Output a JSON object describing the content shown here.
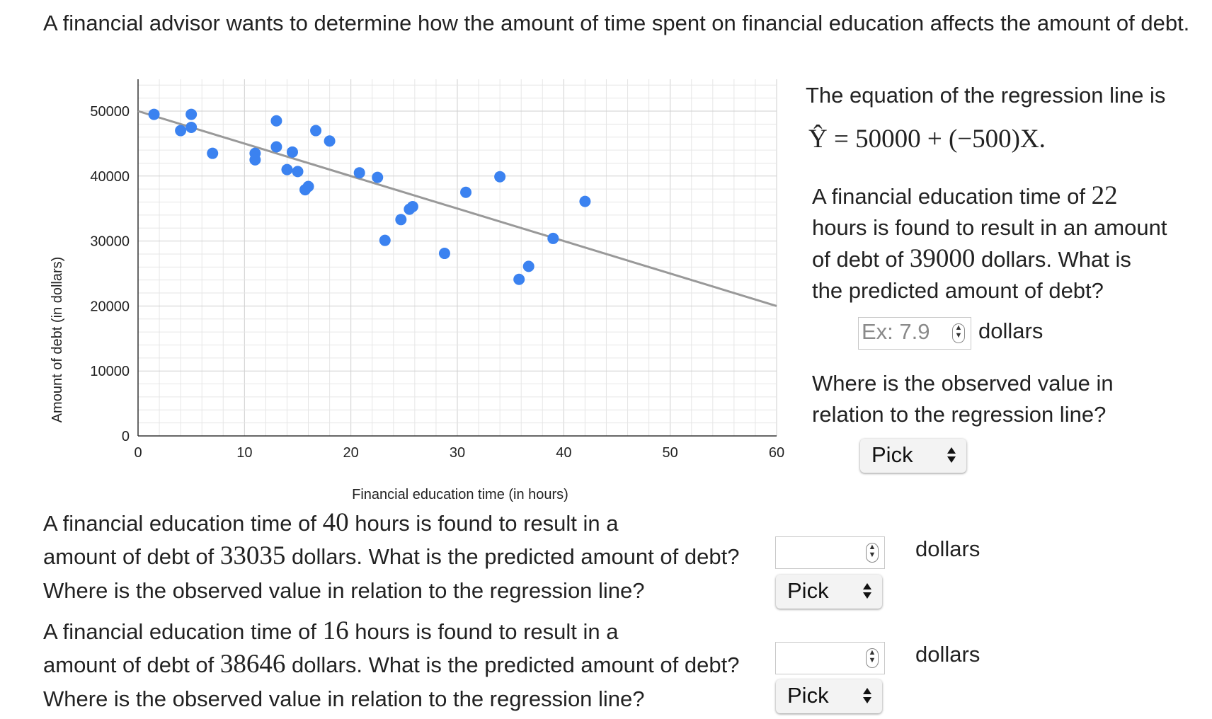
{
  "intro": "A financial advisor wants to determine how the amount of time spent on financial education affects the amount of debt.",
  "chart_data": {
    "type": "scatter",
    "xlabel": "Financial education time (in hours)",
    "ylabel": "Amount of debt (in dollars)",
    "xlim": [
      0,
      60
    ],
    "ylim": [
      0,
      50000
    ],
    "xticks": [
      0,
      10,
      20,
      30,
      40,
      50,
      60
    ],
    "yticks": [
      0,
      10000,
      20000,
      30000,
      40000,
      50000
    ],
    "grid": true,
    "point_color": "#3b82f0",
    "line_color": "#999999",
    "regression": {
      "intercept": 50000,
      "slope": -500
    },
    "points": [
      {
        "x": 1.5,
        "y": 49500
      },
      {
        "x": 4,
        "y": 47000
      },
      {
        "x": 5,
        "y": 49500
      },
      {
        "x": 5,
        "y": 47500
      },
      {
        "x": 7,
        "y": 43500
      },
      {
        "x": 11,
        "y": 43500
      },
      {
        "x": 11,
        "y": 42500
      },
      {
        "x": 13,
        "y": 48500
      },
      {
        "x": 13,
        "y": 44500
      },
      {
        "x": 14,
        "y": 41000
      },
      {
        "x": 14.5,
        "y": 43700
      },
      {
        "x": 15,
        "y": 40700
      },
      {
        "x": 15.7,
        "y": 37900
      },
      {
        "x": 16,
        "y": 38400
      },
      {
        "x": 16.7,
        "y": 47000
      },
      {
        "x": 18,
        "y": 45400
      },
      {
        "x": 20.8,
        "y": 40500
      },
      {
        "x": 22.5,
        "y": 39800
      },
      {
        "x": 23.2,
        "y": 30100
      },
      {
        "x": 24.7,
        "y": 33300
      },
      {
        "x": 25.5,
        "y": 34900
      },
      {
        "x": 25.8,
        "y": 35300
      },
      {
        "x": 28.8,
        "y": 28100
      },
      {
        "x": 30.8,
        "y": 37500
      },
      {
        "x": 34,
        "y": 39900
      },
      {
        "x": 35.8,
        "y": 24100
      },
      {
        "x": 36.7,
        "y": 26100
      },
      {
        "x": 39,
        "y": 30400
      },
      {
        "x": 42,
        "y": 36100
      }
    ]
  },
  "side": {
    "eq_text": "The equation of the regression line is",
    "eq_math": "Ŷ = 50000 + (−500)X.",
    "p1_a": "A financial education time of ",
    "p1_hours": "22",
    "p1_b": "hours is found to result in an amount",
    "p1_c": "of debt of ",
    "p1_debt": "39000",
    "p1_d": " dollars. What is",
    "p1_e": "the predicted amount of debt?",
    "input_placeholder": "Ex: 7.9",
    "unit": "dollars",
    "q_a": "Where is the observed value in",
    "q_b": "relation to the regression line?",
    "pick": "Pick"
  },
  "q2": {
    "l1a": "A financial education time of ",
    "hours": "40",
    "l1b": " hours is found to result in a",
    "l2a": "amount of debt of ",
    "debt": "33035",
    "l2b": " dollars. What is the predicted amount of debt?",
    "l3": "Where is the observed value in relation to the regression line?",
    "unit": "dollars",
    "pick": "Pick"
  },
  "q3": {
    "l1a": "A financial education time of ",
    "hours": "16",
    "l1b": " hours is found to result in a",
    "l2a": "amount of debt of ",
    "debt": "38646",
    "l2b": " dollars. What is the predicted amount of debt?",
    "l3": "Where is the observed value in relation to the regression line?",
    "unit": "dollars",
    "pick": "Pick"
  }
}
